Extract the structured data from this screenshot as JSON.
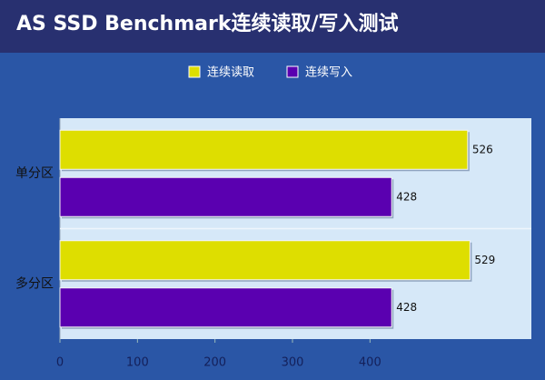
{
  "chart_data": {
    "type": "hbar",
    "title": "AS SSD Benchmark连续读取/写入测试",
    "categories": [
      "单分区",
      "多分区"
    ],
    "series": [
      {
        "name": "连续读取",
        "color": "#dede00",
        "values": [
          526,
          529
        ]
      },
      {
        "name": "连续写入",
        "color": "#5a00b0",
        "values": [
          428,
          428
        ]
      }
    ],
    "xlim": [
      0,
      600
    ],
    "xticks": [
      0,
      100,
      200,
      300,
      400
    ],
    "legend": "top"
  }
}
